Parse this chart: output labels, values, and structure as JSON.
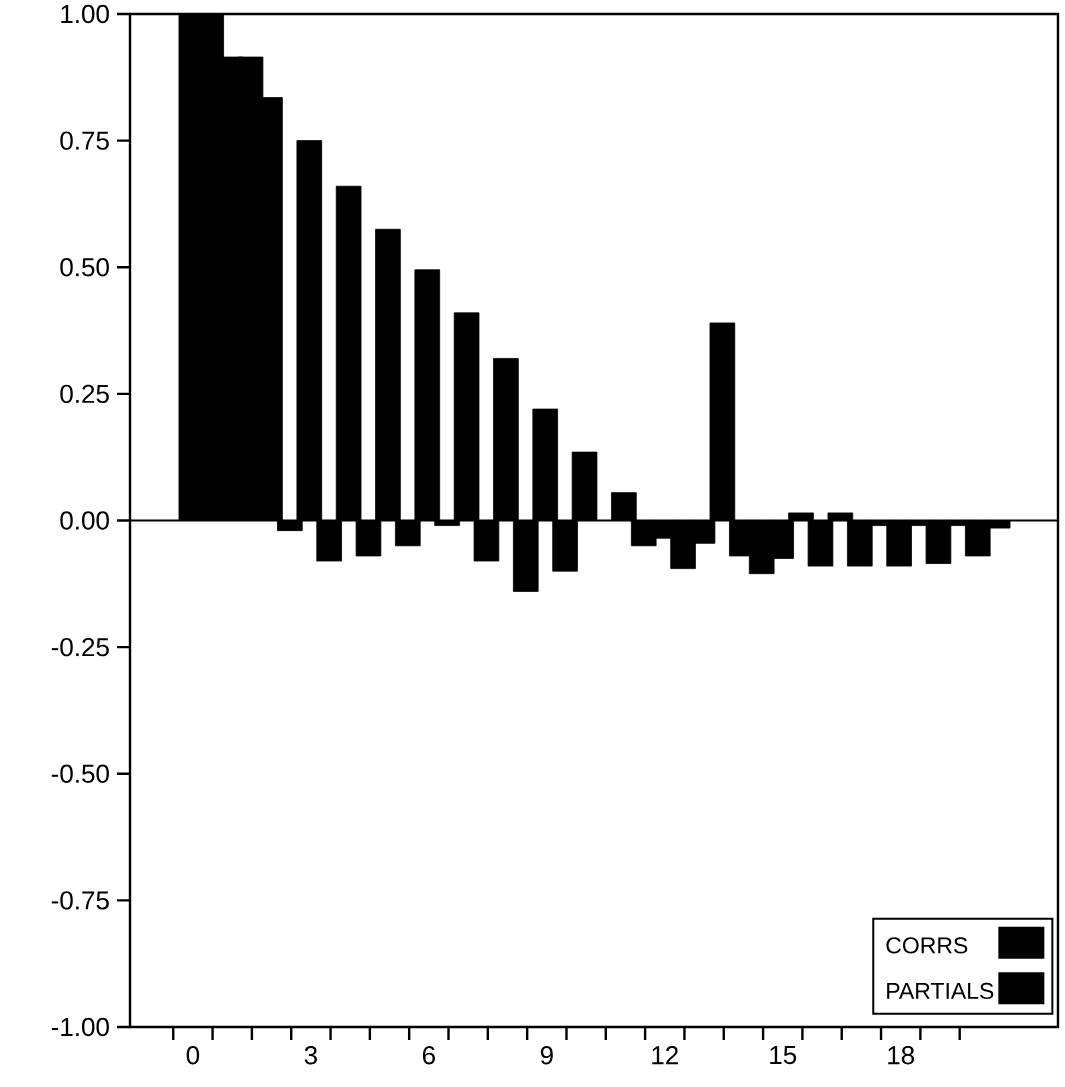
{
  "chart_data": {
    "type": "bar",
    "x": [
      0,
      1,
      2,
      3,
      4,
      5,
      6,
      7,
      8,
      9,
      10,
      11,
      12,
      13,
      14,
      15,
      16,
      17,
      18,
      19,
      20
    ],
    "series": [
      {
        "name": "CORRS",
        "color": "#000000",
        "values": [
          1.0,
          0.915,
          0.835,
          0.75,
          0.66,
          0.575,
          0.495,
          0.41,
          0.32,
          0.22,
          0.135,
          0.055,
          -0.035,
          -0.045,
          -0.07,
          -0.075,
          -0.09,
          -0.09,
          -0.09,
          -0.085,
          -0.07
        ]
      },
      {
        "name": "PARTIALS",
        "color": "#000000",
        "values": [
          1.0,
          0.915,
          -0.02,
          -0.08,
          -0.07,
          -0.05,
          -0.01,
          -0.08,
          -0.14,
          -0.1,
          null,
          -0.05,
          -0.095,
          0.39,
          -0.105,
          0.015,
          0.015,
          -0.01,
          -0.01,
          -0.01,
          -0.015
        ]
      }
    ],
    "xlim": [
      -1.6,
      22
    ],
    "xticks": [
      0,
      3,
      6,
      9,
      12,
      15,
      18,
      {
        "value": -0.5,
        "label": null
      },
      {
        "value": 0.5,
        "label": null
      },
      {
        "value": 1.5,
        "label": null
      },
      {
        "value": 2.5,
        "label": null
      },
      {
        "value": 3.5,
        "label": null
      },
      {
        "value": 4.5,
        "label": null
      },
      {
        "value": 5.5,
        "label": null
      },
      {
        "value": 6.5,
        "label": null
      },
      {
        "value": 7.5,
        "label": null
      },
      {
        "value": 8.5,
        "label": null
      },
      {
        "value": 9.5,
        "label": null
      },
      {
        "value": 10.5,
        "label": null
      },
      {
        "value": 11.5,
        "label": null
      },
      {
        "value": 12.5,
        "label": null
      },
      {
        "value": 13.5,
        "label": null
      },
      {
        "value": 14.5,
        "label": null
      },
      {
        "value": 15.5,
        "label": null
      },
      {
        "value": 16.5,
        "label": null
      },
      {
        "value": 17.5,
        "label": null
      },
      {
        "value": 18.5,
        "label": null
      },
      {
        "value": 19.5,
        "label": null
      }
    ],
    "ylim": [
      -1,
      1
    ],
    "yticks": [
      {
        "value": -1,
        "label": "-1.00"
      },
      {
        "value": -0.75,
        "label": "-0.75"
      },
      {
        "value": -0.5,
        "label": "-0.50"
      },
      {
        "value": -0.25,
        "label": "-0.25"
      },
      {
        "value": 0,
        "label": "0.00"
      },
      {
        "value": 0.25,
        "label": "0.25"
      },
      {
        "value": 0.5,
        "label": "0.50"
      },
      {
        "value": 0.75,
        "label": "0.75"
      },
      {
        "value": 1,
        "label": "1.00"
      }
    ],
    "ref_lines": [
      {
        "axis": "y",
        "value": 0
      }
    ],
    "legend": "bottom right"
  }
}
